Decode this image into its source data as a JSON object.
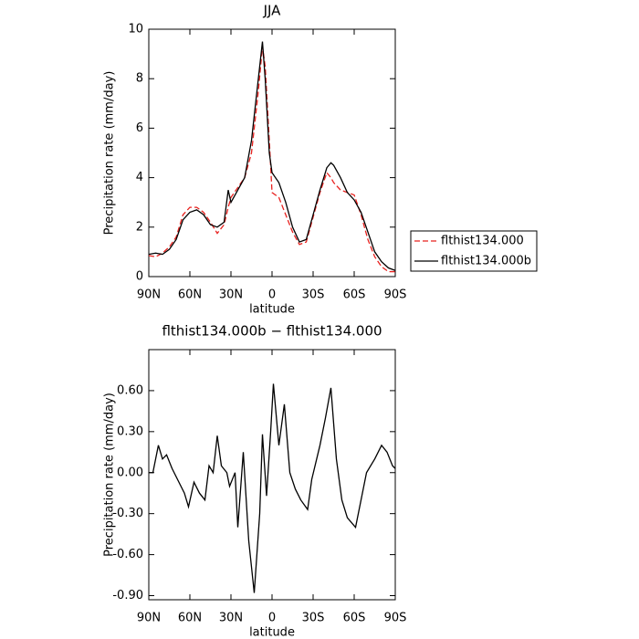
{
  "chart_data": [
    {
      "type": "line",
      "title": "JJA",
      "x_label": "latitude",
      "y_label": "Precipitation rate (mm/day)",
      "x": [
        90,
        85,
        80,
        75,
        70,
        65,
        60,
        55,
        50,
        45,
        40,
        35,
        32,
        30,
        25,
        20,
        15,
        10,
        7,
        5,
        2,
        0,
        -5,
        -10,
        -15,
        -20,
        -25,
        -30,
        -35,
        -40,
        -43,
        -45,
        -50,
        -55,
        -60,
        -65,
        -70,
        -75,
        -80,
        -85,
        -90
      ],
      "series": [
        {
          "name": "flthist134.000",
          "color": "#e8211e",
          "dash": true,
          "values": [
            0.85,
            0.8,
            0.95,
            1.2,
            1.6,
            2.5,
            2.8,
            2.8,
            2.6,
            2.2,
            1.75,
            2.1,
            2.8,
            3.2,
            3.6,
            4.0,
            5.0,
            7.5,
            9.3,
            8.5,
            5.5,
            3.4,
            3.2,
            2.5,
            1.8,
            1.3,
            1.4,
            2.4,
            3.4,
            4.2,
            4.0,
            3.8,
            3.5,
            3.4,
            3.3,
            2.5,
            1.5,
            0.8,
            0.4,
            0.2,
            0.2
          ]
        },
        {
          "name": "flthist134.000b",
          "color": "#000000",
          "dash": false,
          "values": [
            0.9,
            0.95,
            0.9,
            1.1,
            1.5,
            2.3,
            2.6,
            2.7,
            2.5,
            2.1,
            2.0,
            2.2,
            3.5,
            3.0,
            3.5,
            4.0,
            5.5,
            8.0,
            9.5,
            8.0,
            5.0,
            4.2,
            3.8,
            3.0,
            2.0,
            1.4,
            1.5,
            2.5,
            3.5,
            4.4,
            4.6,
            4.5,
            4.0,
            3.4,
            3.1,
            2.6,
            1.8,
            1.0,
            0.6,
            0.35,
            0.25
          ]
        }
      ],
      "xlim": [
        90,
        -90
      ],
      "xticks": [
        {
          "value": 90,
          "label": "90N"
        },
        {
          "value": 60,
          "label": "60N"
        },
        {
          "value": 30,
          "label": "30N"
        },
        0,
        {
          "value": -30,
          "label": "30S"
        },
        {
          "value": -60,
          "label": "60S"
        },
        {
          "value": -90,
          "label": "90S"
        }
      ],
      "ylim": [
        0,
        10
      ],
      "yticks": [
        0,
        2,
        4,
        6,
        8,
        10
      ],
      "legend": "right"
    },
    {
      "type": "line",
      "title": "flthist134.000b − flthist134.000",
      "x_label": "latitude",
      "y_label": "Precipitation rate (mm/day)",
      "x": [
        90,
        87,
        83,
        80,
        77,
        73,
        69,
        64,
        61,
        57,
        53,
        49,
        46,
        43,
        40,
        37,
        33,
        31,
        27,
        25,
        21,
        17,
        13,
        9,
        7,
        4,
        1,
        -1,
        -5,
        -9,
        -13,
        -17,
        -21,
        -26,
        -29,
        -35,
        -39,
        -43,
        -47,
        -51,
        -55,
        -61,
        -65,
        -69,
        -75,
        -80,
        -84,
        -88,
        -90
      ],
      "color": "#000000",
      "values": [
        0.0,
        0.0,
        0.2,
        0.1,
        0.13,
        0.03,
        -0.05,
        -0.15,
        -0.25,
        -0.07,
        -0.15,
        -0.2,
        0.05,
        0.0,
        0.27,
        0.05,
        0.0,
        -0.1,
        0.0,
        -0.4,
        0.15,
        -0.5,
        -0.88,
        -0.3,
        0.28,
        -0.17,
        0.3,
        0.65,
        0.2,
        0.5,
        0.0,
        -0.12,
        -0.2,
        -0.27,
        -0.05,
        0.2,
        0.4,
        0.62,
        0.1,
        -0.2,
        -0.33,
        -0.4,
        -0.2,
        0.0,
        0.1,
        0.2,
        0.15,
        0.05,
        0.03
      ],
      "xlim": [
        90,
        -90
      ],
      "xticks": [
        {
          "value": 90,
          "label": "90N"
        },
        {
          "value": 60,
          "label": "60N"
        },
        {
          "value": 30,
          "label": "30N"
        },
        0,
        {
          "value": -30,
          "label": "30S"
        },
        {
          "value": -60,
          "label": "60S"
        },
        {
          "value": -90,
          "label": "90S"
        }
      ],
      "ylim": [
        -0.93,
        0.9
      ],
      "yticks": [
        {
          "value": 0.6,
          "label": "0.60"
        },
        {
          "value": 0.3,
          "label": "0.30"
        },
        {
          "value": 0,
          "label": "0.00"
        },
        {
          "value": -0.3,
          "label": "-0.30"
        },
        {
          "value": -0.6,
          "label": "-0.60"
        },
        {
          "value": -0.9,
          "label": "-0.90"
        }
      ]
    }
  ]
}
